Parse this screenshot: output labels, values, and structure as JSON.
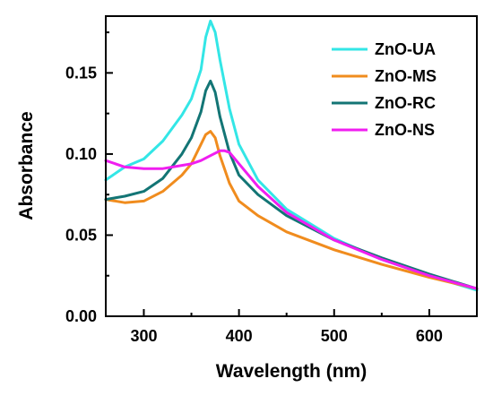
{
  "chart_data": {
    "type": "line",
    "xlabel": "Wavelength (nm)",
    "ylabel": "Absorbance",
    "xlim": [
      260,
      650
    ],
    "ylim": [
      0.0,
      0.185
    ],
    "xticks": [
      300,
      400,
      500,
      600
    ],
    "xtick_labels": [
      "300",
      "400",
      "500",
      "600"
    ],
    "yticks": [
      0.0,
      0.05,
      0.1,
      0.15
    ],
    "ytick_labels": [
      "0.00",
      "0.05",
      "0.10",
      "0.15"
    ],
    "grid": false,
    "legend_position": "top-right",
    "series": [
      {
        "name": "ZnO-UA",
        "color": "#33e6e6",
        "x": [
          260,
          280,
          300,
          320,
          340,
          350,
          360,
          365,
          370,
          375,
          380,
          390,
          400,
          420,
          450,
          500,
          550,
          600,
          650
        ],
        "y": [
          0.084,
          0.092,
          0.097,
          0.108,
          0.124,
          0.134,
          0.152,
          0.172,
          0.182,
          0.175,
          0.158,
          0.128,
          0.106,
          0.084,
          0.066,
          0.048,
          0.035,
          0.025,
          0.016
        ]
      },
      {
        "name": "ZnO-MS",
        "color": "#f08c1e",
        "x": [
          260,
          280,
          300,
          320,
          340,
          350,
          360,
          365,
          370,
          375,
          380,
          390,
          400,
          420,
          450,
          500,
          550,
          600,
          650
        ],
        "y": [
          0.072,
          0.07,
          0.071,
          0.077,
          0.087,
          0.094,
          0.106,
          0.112,
          0.114,
          0.11,
          0.099,
          0.082,
          0.071,
          0.062,
          0.052,
          0.041,
          0.032,
          0.024,
          0.017
        ]
      },
      {
        "name": "ZnO-RC",
        "color": "#137575",
        "x": [
          260,
          280,
          300,
          320,
          340,
          350,
          360,
          365,
          370,
          375,
          380,
          390,
          400,
          420,
          450,
          500,
          550,
          600,
          650
        ],
        "y": [
          0.072,
          0.074,
          0.077,
          0.085,
          0.1,
          0.11,
          0.126,
          0.139,
          0.145,
          0.138,
          0.123,
          0.101,
          0.087,
          0.075,
          0.062,
          0.047,
          0.036,
          0.026,
          0.017
        ]
      },
      {
        "name": "ZnO-NS",
        "color": "#f01ef0",
        "x": [
          260,
          280,
          300,
          320,
          340,
          350,
          360,
          370,
          380,
          385,
          390,
          400,
          420,
          450,
          500,
          550,
          600,
          650
        ],
        "y": [
          0.096,
          0.092,
          0.091,
          0.091,
          0.093,
          0.094,
          0.096,
          0.099,
          0.102,
          0.102,
          0.101,
          0.094,
          0.08,
          0.064,
          0.047,
          0.035,
          0.025,
          0.017
        ]
      }
    ]
  }
}
